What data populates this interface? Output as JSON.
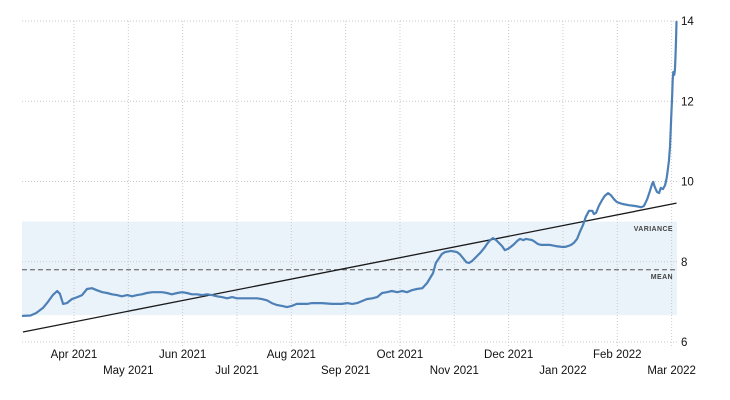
{
  "chart_data": {
    "type": "line",
    "title": "",
    "x_tick_labels": [
      "Apr 2021",
      "May 2021",
      "Jun 2021",
      "Jul 2021",
      "Aug 2021",
      "Sep 2021",
      "Oct 2021",
      "Nov 2021",
      "Dec 2021",
      "Jan 2022",
      "Feb 2022",
      "Mar 2022"
    ],
    "y_ticks": [
      6,
      8,
      10,
      12,
      14
    ],
    "ylim": [
      6,
      14.3
    ],
    "y_axis_side": "right",
    "grid": "dotted",
    "legend_position": "none",
    "x_unit_note": "t = months after the Apr 2021 tick; data runs early Mar 2021 to early Mar 2022",
    "series": [
      {
        "name": "value",
        "type": "line",
        "color": "#4d80b6",
        "points": [
          [
            -0.94,
            6.65
          ],
          [
            -0.8,
            6.66
          ],
          [
            -0.7,
            6.72
          ],
          [
            -0.57,
            6.85
          ],
          [
            -0.48,
            7.0
          ],
          [
            -0.39,
            7.17
          ],
          [
            -0.31,
            7.27
          ],
          [
            -0.26,
            7.2
          ],
          [
            -0.2,
            6.95
          ],
          [
            -0.13,
            6.97
          ],
          [
            -0.04,
            7.07
          ],
          [
            0.06,
            7.12
          ],
          [
            0.15,
            7.17
          ],
          [
            0.24,
            7.32
          ],
          [
            0.33,
            7.34
          ],
          [
            0.42,
            7.29
          ],
          [
            0.52,
            7.24
          ],
          [
            0.61,
            7.22
          ],
          [
            0.7,
            7.19
          ],
          [
            0.79,
            7.17
          ],
          [
            0.88,
            7.14
          ],
          [
            0.98,
            7.17
          ],
          [
            1.07,
            7.14
          ],
          [
            1.16,
            7.17
          ],
          [
            1.25,
            7.19
          ],
          [
            1.34,
            7.22
          ],
          [
            1.44,
            7.24
          ],
          [
            1.53,
            7.24
          ],
          [
            1.62,
            7.24
          ],
          [
            1.71,
            7.22
          ],
          [
            1.8,
            7.19
          ],
          [
            1.9,
            7.22
          ],
          [
            1.99,
            7.24
          ],
          [
            2.08,
            7.22
          ],
          [
            2.17,
            7.19
          ],
          [
            2.26,
            7.19
          ],
          [
            2.36,
            7.17
          ],
          [
            2.45,
            7.19
          ],
          [
            2.54,
            7.17
          ],
          [
            2.63,
            7.14
          ],
          [
            2.72,
            7.12
          ],
          [
            2.82,
            7.09
          ],
          [
            2.91,
            7.12
          ],
          [
            3.0,
            7.09
          ],
          [
            3.18,
            7.09
          ],
          [
            3.37,
            7.09
          ],
          [
            3.46,
            7.07
          ],
          [
            3.55,
            7.04
          ],
          [
            3.64,
            6.97
          ],
          [
            3.74,
            6.92
          ],
          [
            3.83,
            6.9
          ],
          [
            3.92,
            6.87
          ],
          [
            4.01,
            6.9
          ],
          [
            4.1,
            6.95
          ],
          [
            4.29,
            6.95
          ],
          [
            4.38,
            6.97
          ],
          [
            4.56,
            6.97
          ],
          [
            4.75,
            6.95
          ],
          [
            4.93,
            6.95
          ],
          [
            5.03,
            6.97
          ],
          [
            5.12,
            6.95
          ],
          [
            5.21,
            6.97
          ],
          [
            5.3,
            7.02
          ],
          [
            5.39,
            7.07
          ],
          [
            5.49,
            7.09
          ],
          [
            5.58,
            7.12
          ],
          [
            5.67,
            7.22
          ],
          [
            5.76,
            7.24
          ],
          [
            5.85,
            7.27
          ],
          [
            5.95,
            7.24
          ],
          [
            6.04,
            7.27
          ],
          [
            6.13,
            7.24
          ],
          [
            6.22,
            7.29
          ],
          [
            6.31,
            7.32
          ],
          [
            6.41,
            7.34
          ],
          [
            6.5,
            7.47
          ],
          [
            6.61,
            7.72
          ],
          [
            6.66,
            7.97
          ],
          [
            6.72,
            8.09
          ],
          [
            6.77,
            8.19
          ],
          [
            6.83,
            8.24
          ],
          [
            6.94,
            8.27
          ],
          [
            7.05,
            8.24
          ],
          [
            7.1,
            8.19
          ],
          [
            7.16,
            8.09
          ],
          [
            7.22,
            7.99
          ],
          [
            7.27,
            7.97
          ],
          [
            7.33,
            8.02
          ],
          [
            7.38,
            8.09
          ],
          [
            7.44,
            8.17
          ],
          [
            7.49,
            8.24
          ],
          [
            7.55,
            8.34
          ],
          [
            7.6,
            8.44
          ],
          [
            7.66,
            8.54
          ],
          [
            7.71,
            8.59
          ],
          [
            7.77,
            8.54
          ],
          [
            7.82,
            8.47
          ],
          [
            7.88,
            8.39
          ],
          [
            7.93,
            8.29
          ],
          [
            7.99,
            8.32
          ],
          [
            8.04,
            8.37
          ],
          [
            8.1,
            8.44
          ],
          [
            8.16,
            8.52
          ],
          [
            8.21,
            8.57
          ],
          [
            8.27,
            8.54
          ],
          [
            8.32,
            8.57
          ],
          [
            8.43,
            8.54
          ],
          [
            8.49,
            8.49
          ],
          [
            8.54,
            8.44
          ],
          [
            8.6,
            8.42
          ],
          [
            8.76,
            8.42
          ],
          [
            8.87,
            8.39
          ],
          [
            8.98,
            8.37
          ],
          [
            9.04,
            8.37
          ],
          [
            9.09,
            8.39
          ],
          [
            9.15,
            8.42
          ],
          [
            9.2,
            8.47
          ],
          [
            9.26,
            8.57
          ],
          [
            9.31,
            8.74
          ],
          [
            9.37,
            8.92
          ],
          [
            9.42,
            9.12
          ],
          [
            9.48,
            9.27
          ],
          [
            9.54,
            9.27
          ],
          [
            9.57,
            9.19
          ],
          [
            9.61,
            9.22
          ],
          [
            9.66,
            9.39
          ],
          [
            9.72,
            9.54
          ],
          [
            9.77,
            9.64
          ],
          [
            9.83,
            9.71
          ],
          [
            9.88,
            9.66
          ],
          [
            9.94,
            9.56
          ],
          [
            9.99,
            9.49
          ],
          [
            10.05,
            9.46
          ],
          [
            10.1,
            9.44
          ],
          [
            10.21,
            9.41
          ],
          [
            10.33,
            9.39
          ],
          [
            10.44,
            9.36
          ],
          [
            10.49,
            9.39
          ],
          [
            10.55,
            9.56
          ],
          [
            10.6,
            9.76
          ],
          [
            10.64,
            9.94
          ],
          [
            10.66,
            9.99
          ],
          [
            10.69,
            9.86
          ],
          [
            10.73,
            9.74
          ],
          [
            10.77,
            9.71
          ],
          [
            10.8,
            9.84
          ],
          [
            10.84,
            9.81
          ],
          [
            10.88,
            9.91
          ],
          [
            10.91,
            10.09
          ],
          [
            10.93,
            10.29
          ],
          [
            10.95,
            10.51
          ],
          [
            10.97,
            10.86
          ],
          [
            10.99,
            11.53
          ],
          [
            11.01,
            12.16
          ],
          [
            11.02,
            12.53
          ],
          [
            11.03,
            12.73
          ],
          [
            11.05,
            12.66
          ],
          [
            11.06,
            12.78
          ],
          [
            11.07,
            13.05
          ],
          [
            11.08,
            13.5
          ],
          [
            11.09,
            13.98
          ]
        ]
      },
      {
        "name": "trend",
        "type": "line",
        "color": "#1a1a1a",
        "points": [
          [
            -0.94,
            6.25
          ],
          [
            11.09,
            9.46
          ]
        ]
      }
    ],
    "mean": {
      "label": "MEAN",
      "value": 7.8
    },
    "variance_band": {
      "label": "VARIANCE",
      "from": 6.67,
      "to": 9.0
    },
    "colors": {
      "series": "#4d80b6",
      "trend": "#1a1a1a",
      "mean_line": "#555555",
      "band": "#eaf2fa",
      "grid": "#c9c9c9",
      "axis_text": "#111111",
      "annotation_text": "#444444"
    }
  }
}
